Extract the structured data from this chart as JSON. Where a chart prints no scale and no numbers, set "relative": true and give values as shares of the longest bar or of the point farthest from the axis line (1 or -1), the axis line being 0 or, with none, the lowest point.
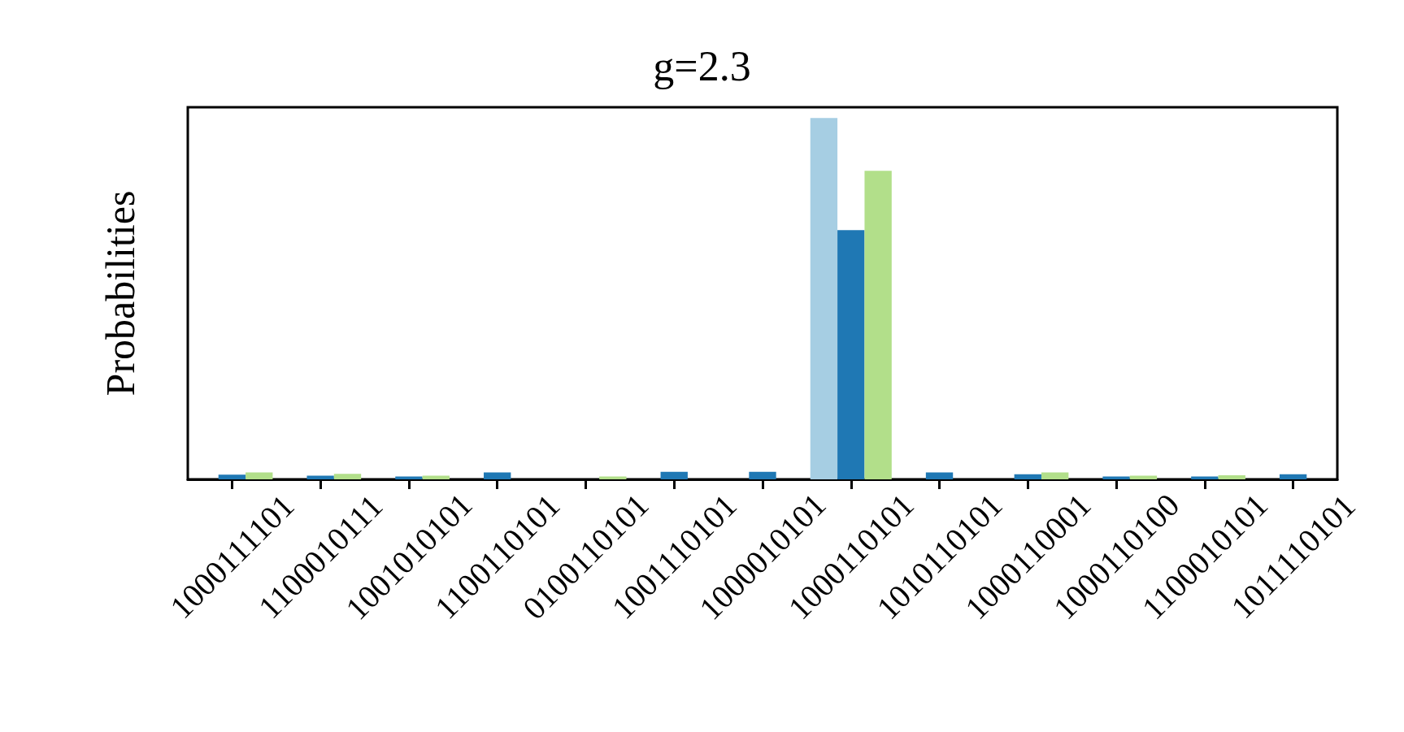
{
  "chart_data": {
    "type": "bar",
    "title": "g=2.3",
    "ylabel": "Probabilities",
    "relative": true,
    "categories": [
      "1000111101",
      "1100010111",
      "1001010101",
      "1100110101",
      "0100110101",
      "1001110101",
      "1000010101",
      "1000110101",
      "1010110101",
      "1000110001",
      "1000110100",
      "1100010101",
      "1011110101"
    ],
    "series": [
      {
        "color": "#a6cee3",
        "values": [
          null,
          null,
          null,
          null,
          null,
          null,
          null,
          1,
          null,
          null,
          null,
          null,
          null
        ]
      },
      {
        "color": "#1f78b4",
        "values": [
          0.013,
          0.01,
          0.008,
          0.019,
          null,
          0.021,
          0.021,
          0.69,
          0.019,
          0.014,
          0.008,
          0.008,
          0.014
        ]
      },
      {
        "color": "#b2df8a",
        "values": [
          0.019,
          0.015,
          0.01,
          null,
          0.008,
          null,
          null,
          0.854,
          null,
          0.019,
          0.01,
          0.011,
          null
        ]
      }
    ]
  }
}
